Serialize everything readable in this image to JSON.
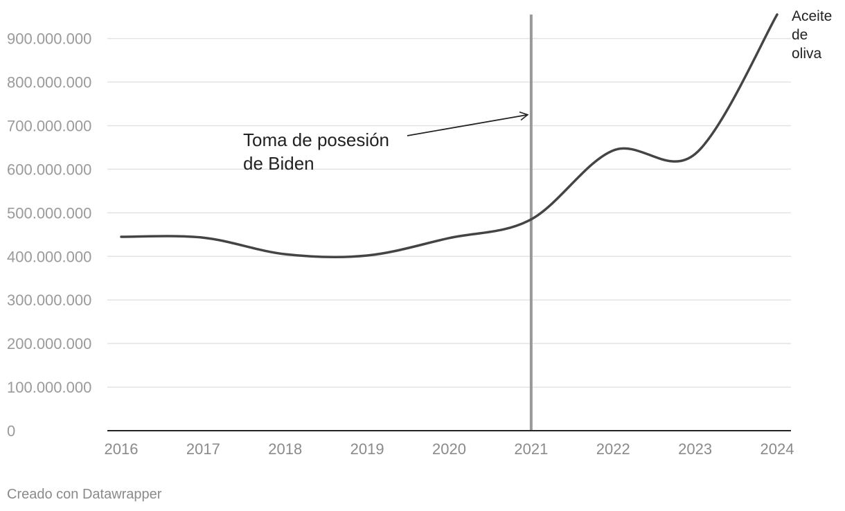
{
  "chart_data": {
    "type": "line",
    "x": [
      "2016",
      "2017",
      "2018",
      "2019",
      "2020",
      "2021",
      "2022",
      "2023",
      "2024"
    ],
    "series": [
      {
        "name": "Aceite de oliva",
        "values": [
          445000000,
          443000000,
          405000000,
          402000000,
          442000000,
          485000000,
          643000000,
          635000000,
          955000000
        ]
      }
    ],
    "y_ticks": [
      "0",
      "100.000.000",
      "200.000.000",
      "300.000.000",
      "400.000.000",
      "500.000.000",
      "600.000.000",
      "700.000.000",
      "800.000.000",
      "900.000.000"
    ],
    "y_tick_values": [
      0,
      100000000,
      200000000,
      300000000,
      400000000,
      500000000,
      600000000,
      700000000,
      800000000,
      900000000
    ],
    "ylim": [
      0,
      955000000
    ],
    "grid": true,
    "series_label_lines": [
      "Aceite",
      "de",
      "oliva"
    ],
    "marker_x": "2021",
    "annotation": {
      "lines": [
        "Toma de posesión",
        "de Biden"
      ],
      "arrow_target_value": 725000000
    },
    "colors": {
      "line": "#444444",
      "marker": "#999999",
      "grid": "#e3e3e3",
      "axis": "#222222",
      "tick_text": "#9a9a9a"
    }
  },
  "footer": "Creado con Datawrapper"
}
